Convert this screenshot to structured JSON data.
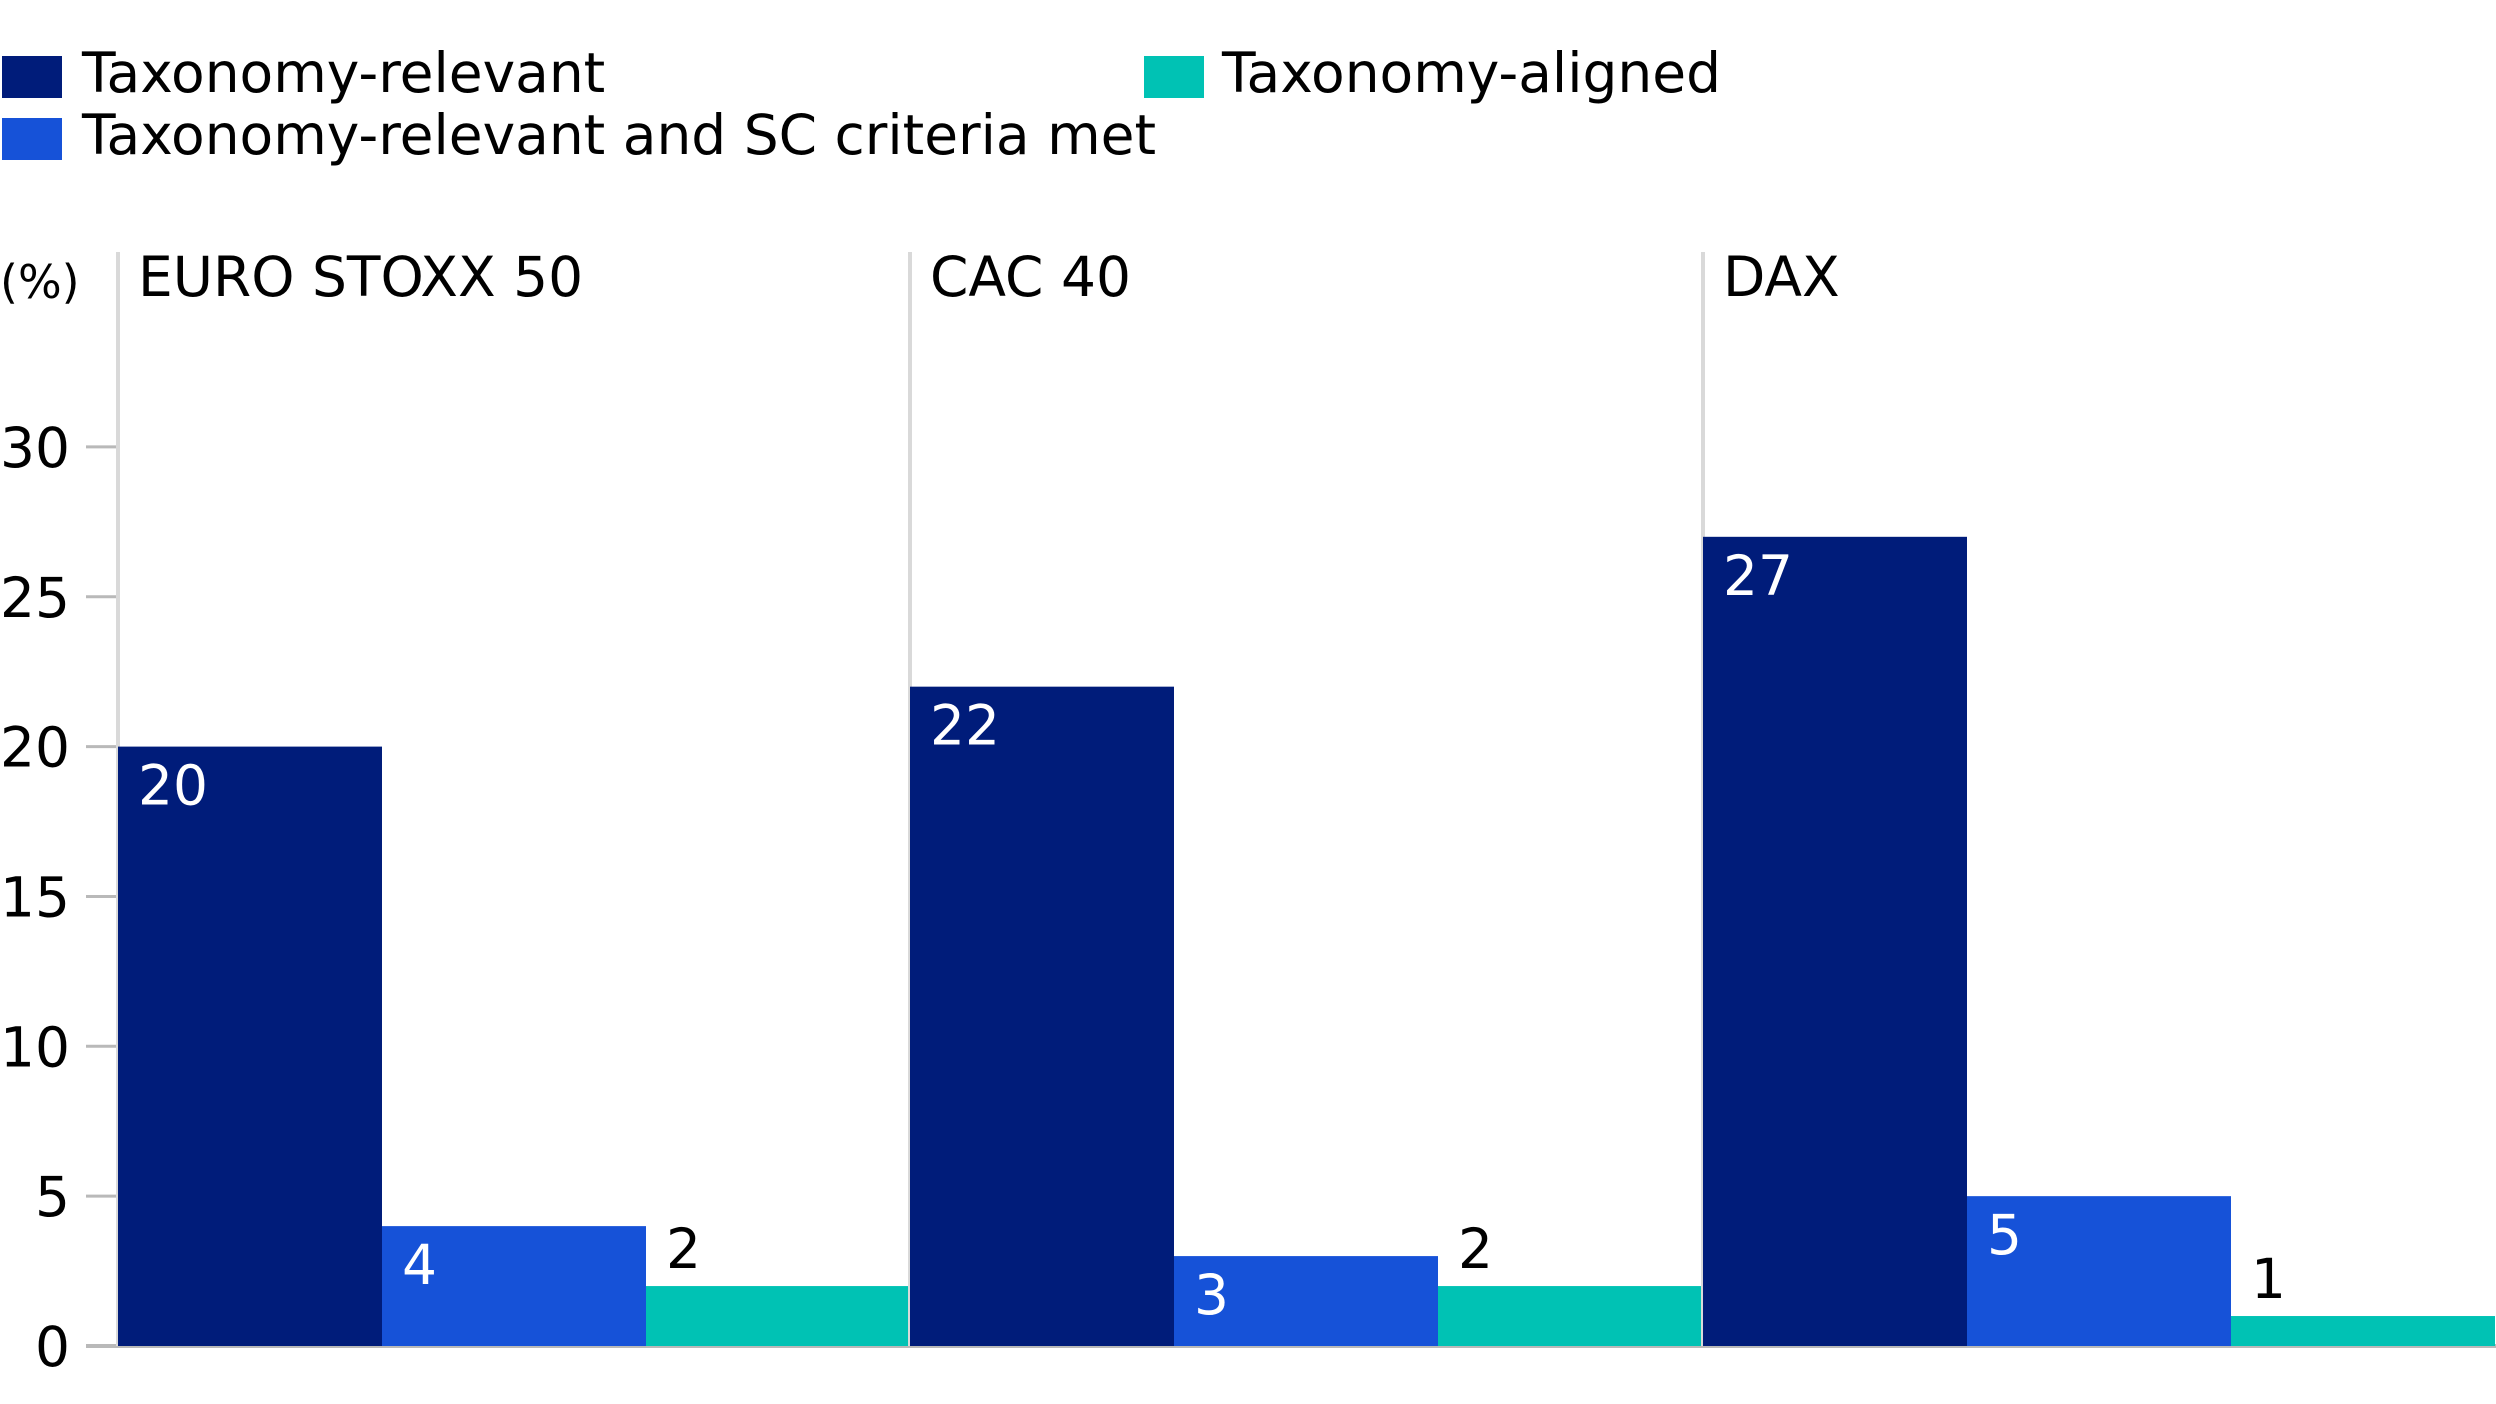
{
  "chart_data": {
    "type": "bar",
    "unit_label": "(%)",
    "ylim": [
      0,
      35
    ],
    "yticks": [
      0,
      5,
      10,
      15,
      20,
      25,
      30
    ],
    "grid": false,
    "legend_position": "top-left",
    "series": [
      {
        "name": "Taxonomy-relevant",
        "color": "#001c7a"
      },
      {
        "name": "Taxonomy-relevant and SC criteria met",
        "color": "#1652d8"
      },
      {
        "name": "Taxonomy-aligned",
        "color": "#00c2b4"
      }
    ],
    "panels": [
      {
        "title": "EURO STOXX 50",
        "values": [
          20,
          4,
          2
        ]
      },
      {
        "title": "CAC 40",
        "values": [
          22,
          3,
          2
        ]
      },
      {
        "title": "DAX",
        "values": [
          27,
          5,
          1
        ]
      }
    ],
    "label_colors": {
      "inside": "#ffffff",
      "above": "#000000"
    }
  }
}
